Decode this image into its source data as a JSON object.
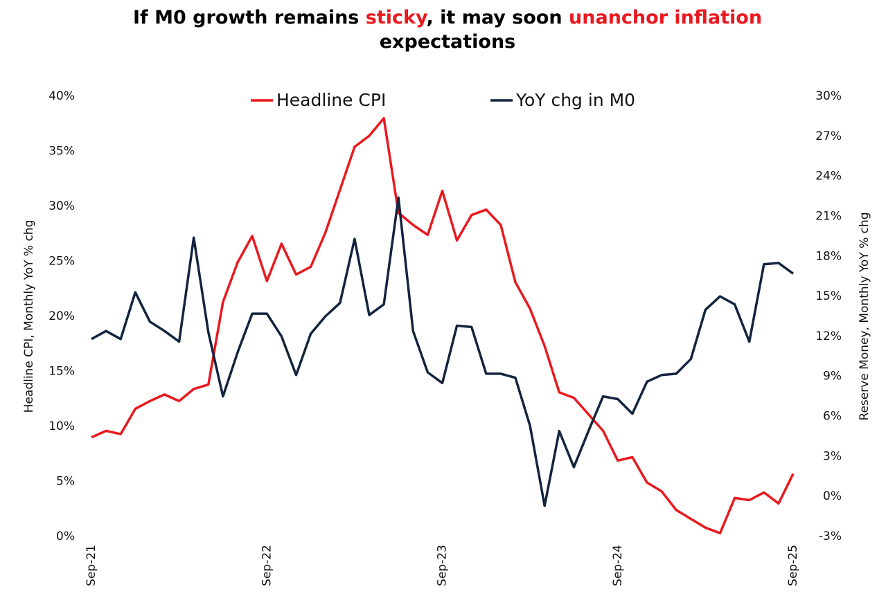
{
  "chart_data": {
    "type": "line",
    "title": [
      {
        "text": "If M0 growth remains ",
        "color": "#000000"
      },
      {
        "text": "sticky",
        "color": "#e8191f"
      },
      {
        "text": ", it may soon ",
        "color": "#000000"
      },
      {
        "text": "unanchor inflation",
        "color": "#e8191f"
      },
      {
        "text": "expectations",
        "color": "#000000"
      }
    ],
    "y_label": "Headline CPI,  Monthly  YoY % chg",
    "y2_label": "Reserve Money, Monthly YoY % chg",
    "categories": [
      "Sep-21",
      null,
      null,
      null,
      null,
      null,
      null,
      null,
      null,
      null,
      null,
      null,
      "Sep-22",
      null,
      null,
      null,
      null,
      null,
      null,
      null,
      null,
      null,
      null,
      null,
      "Sep-23",
      null,
      null,
      null,
      null,
      null,
      null,
      null,
      null,
      null,
      null,
      null,
      "Sep-24",
      null,
      null,
      null,
      null,
      null,
      null,
      null,
      null,
      null,
      null,
      null,
      "Sep-25"
    ],
    "series": [
      {
        "name": "Headline CPI",
        "color": "#e8191f",
        "axis": "y",
        "values": [
          9.0,
          9.6,
          9.3,
          11.6,
          12.3,
          12.9,
          12.3,
          13.4,
          13.8,
          21.3,
          24.9,
          27.3,
          23.2,
          26.6,
          23.8,
          24.5,
          27.6,
          31.5,
          35.4,
          36.4,
          38.0,
          29.4,
          28.3,
          27.4,
          31.4,
          26.9,
          29.2,
          29.7,
          28.3,
          23.1,
          20.7,
          17.3,
          13.1,
          12.6,
          11.1,
          9.6,
          6.9,
          7.2,
          4.9,
          4.1,
          2.4,
          1.6,
          0.8,
          0.3,
          3.5,
          3.3,
          4.0,
          3.0,
          5.7
        ]
      },
      {
        "name": "YoY chg in M0",
        "color": "#13243f",
        "axis": "y2",
        "values": [
          11.8,
          12.4,
          11.8,
          15.3,
          13.1,
          12.4,
          11.6,
          19.4,
          12.3,
          7.5,
          10.8,
          13.7,
          13.7,
          12.0,
          9.1,
          12.2,
          13.5,
          14.5,
          19.3,
          13.6,
          14.4,
          22.4,
          12.4,
          9.3,
          8.5,
          12.8,
          12.7,
          9.2,
          9.2,
          8.9,
          5.3,
          -0.7,
          4.9,
          2.2,
          4.9,
          7.5,
          7.3,
          6.2,
          8.6,
          9.1,
          9.2,
          10.3,
          14.0,
          15.0,
          14.4,
          11.6,
          17.4,
          17.5,
          16.7
        ]
      }
    ],
    "ylim": [
      0,
      40
    ],
    "yticks": [
      {
        "value": 0,
        "label": "0%"
      },
      {
        "value": 5,
        "label": "5%"
      },
      {
        "value": 10,
        "label": "10%"
      },
      {
        "value": 15,
        "label": "15%"
      },
      {
        "value": 20,
        "label": "20%"
      },
      {
        "value": 25,
        "label": "25%"
      },
      {
        "value": 30,
        "label": "30%"
      },
      {
        "value": 35,
        "label": "35%"
      },
      {
        "value": 40,
        "label": "40%"
      }
    ],
    "y2lim": [
      -3,
      30
    ],
    "y2ticks": [
      {
        "value": -3,
        "label": "-3%"
      },
      {
        "value": 0,
        "label": "0%"
      },
      {
        "value": 3,
        "label": "3%"
      },
      {
        "value": 6,
        "label": "6%"
      },
      {
        "value": 9,
        "label": "9%"
      },
      {
        "value": 12,
        "label": "12%"
      },
      {
        "value": 15,
        "label": "15%"
      },
      {
        "value": 18,
        "label": "18%"
      },
      {
        "value": 21,
        "label": "21%"
      },
      {
        "value": 24,
        "label": "24%"
      },
      {
        "value": 27,
        "label": "27%"
      },
      {
        "value": 30,
        "label": "30%"
      }
    ],
    "grid": false,
    "legend": "top"
  }
}
